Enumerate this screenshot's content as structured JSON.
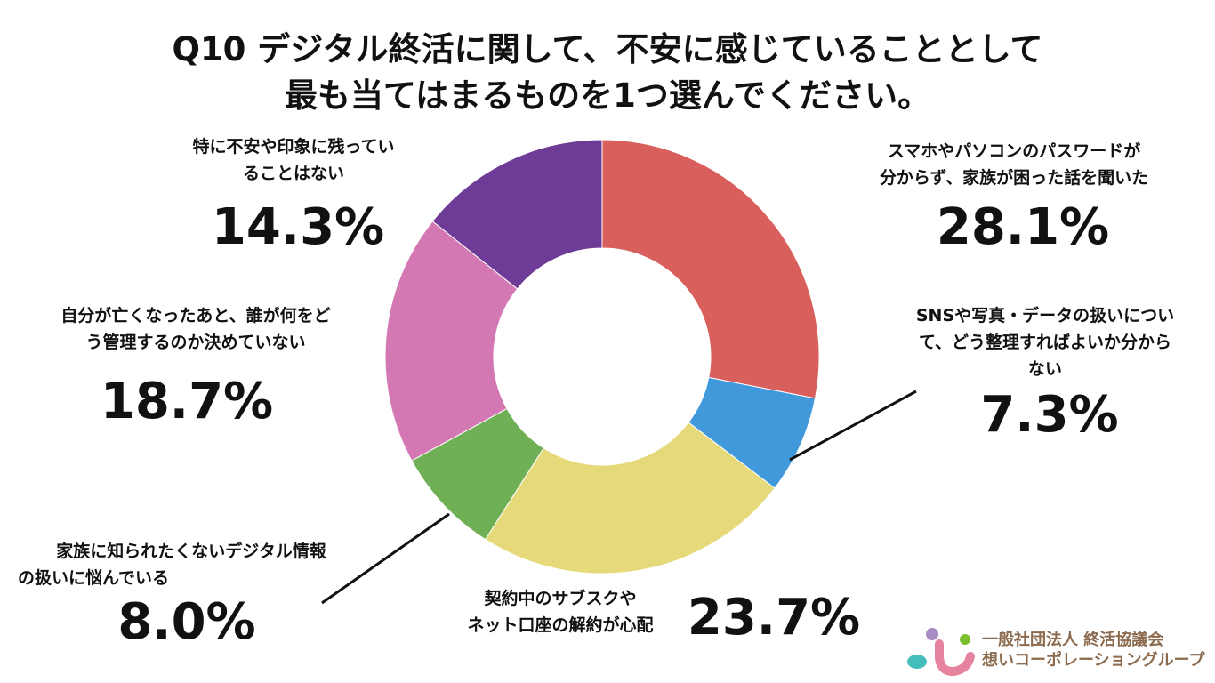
{
  "chart_data": {
    "type": "pie",
    "variant": "donut",
    "title_lines": [
      "Q10 デジタル終活に関して、不安に感じていることとして",
      "最も当てはまるものを1つ選んでください。"
    ],
    "start": "top",
    "direction": "clockwise",
    "slices": [
      {
        "label_lines": [
          "スマホやパソコンのパスワードが",
          "分からず、家族が困った話を聞いた"
        ],
        "value": 28.1,
        "display": "28.1%",
        "color": "#D95F5C"
      },
      {
        "label_lines": [
          "SNSや写真・データの扱いについ",
          "て、どう整理すればよいか分から",
          "ない"
        ],
        "value": 7.3,
        "display": "7.3%",
        "color": "#4199DC"
      },
      {
        "label_lines": [
          "契約中のサブスクや",
          "ネット口座の解約が心配"
        ],
        "value": 23.7,
        "display": "23.7%",
        "color": "#E5D97A"
      },
      {
        "label_lines": [
          "家族に知られたくないデジタル情報",
          "の扱いに悩んでいる"
        ],
        "value": 8.0,
        "display": "8.0%",
        "color": "#6FAF55"
      },
      {
        "label_lines": [
          "自分が亡くなったあと、誰が何をど",
          "う管理するのか決めていない"
        ],
        "value": 18.7,
        "display": "18.7%",
        "color": "#D478B4"
      },
      {
        "label_lines": [
          "特に不安や印象に残ってい",
          "ることはない"
        ],
        "value": 14.3,
        "display": "14.3%",
        "color": "#6E3B96"
      }
    ]
  },
  "logo": {
    "line1": "一般社団法人 終活協議会",
    "line2": "想いコーポレーショングループ"
  }
}
